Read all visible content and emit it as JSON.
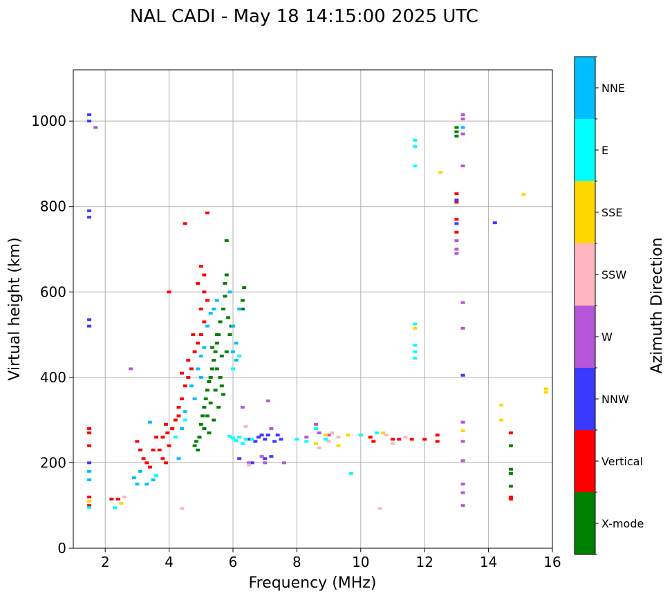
{
  "chart_data": {
    "type": "scatter",
    "title": "NAL CADI - May 18 14:15:00 2025 UTC",
    "xlabel": "Frequency (MHz)",
    "ylabel": "Virtual height (km)",
    "xlim": [
      1,
      16
    ],
    "ylim": [
      0,
      1120
    ],
    "xticks": [
      2,
      4,
      6,
      8,
      10,
      12,
      14,
      16
    ],
    "yticks": [
      0,
      200,
      400,
      600,
      800,
      1000
    ],
    "grid": true,
    "colorbar": {
      "title": "Azimuth Direction",
      "categories": [
        {
          "label": "X-mode",
          "color": "#008000"
        },
        {
          "label": "Vertical",
          "color": "#ff0000"
        },
        {
          "label": "NNW",
          "color": "#3a3aff"
        },
        {
          "label": "W",
          "color": "#b656d8"
        },
        {
          "label": "SSW",
          "color": "#ffb6c1"
        },
        {
          "label": "SSE",
          "color": "#ffd700"
        },
        {
          "label": "E",
          "color": "#00ffff"
        },
        {
          "label": "NNE",
          "color": "#00bfff"
        }
      ]
    },
    "series": [
      {
        "name": "X-mode",
        "points": [
          [
            5.0,
            290
          ],
          [
            5.05,
            310
          ],
          [
            5.1,
            330
          ],
          [
            5.15,
            350
          ],
          [
            5.2,
            370
          ],
          [
            5.25,
            390
          ],
          [
            5.3,
            400
          ],
          [
            5.35,
            420
          ],
          [
            5.4,
            440
          ],
          [
            5.45,
            460
          ],
          [
            5.5,
            480
          ],
          [
            5.55,
            500
          ],
          [
            5.6,
            530
          ],
          [
            5.7,
            560
          ],
          [
            5.75,
            590
          ],
          [
            5.75,
            620
          ],
          [
            5.8,
            640
          ],
          [
            6.3,
            580
          ],
          [
            6.3,
            560
          ],
          [
            6.35,
            610
          ],
          [
            5.5,
            420
          ],
          [
            5.6,
            400
          ],
          [
            5.65,
            380
          ],
          [
            5.7,
            360
          ],
          [
            5.45,
            370
          ],
          [
            5.3,
            340
          ],
          [
            5.2,
            310
          ],
          [
            5.1,
            280
          ],
          [
            4.95,
            260
          ],
          [
            4.8,
            240
          ],
          [
            4.85,
            250
          ],
          [
            5.8,
            720
          ],
          [
            13.0,
            985
          ],
          [
            13.0,
            975
          ],
          [
            13.0,
            965
          ],
          [
            14.7,
            240
          ],
          [
            14.7,
            185
          ],
          [
            14.7,
            175
          ],
          [
            14.7,
            145
          ],
          [
            5.9,
            500
          ],
          [
            5.95,
            520
          ],
          [
            5.4,
            300
          ],
          [
            5.55,
            330
          ],
          [
            5.65,
            450
          ],
          [
            5.8,
            460
          ],
          [
            4.9,
            230
          ],
          [
            5.25,
            270
          ],
          [
            5.5,
            500
          ],
          [
            5.85,
            540
          ],
          [
            5.35,
            470
          ]
        ]
      },
      {
        "name": "Vertical",
        "points": [
          [
            1.5,
            280
          ],
          [
            1.5,
            270
          ],
          [
            1.5,
            240
          ],
          [
            1.5,
            120
          ],
          [
            1.5,
            100
          ],
          [
            2.2,
            115
          ],
          [
            2.4,
            115
          ],
          [
            3.0,
            250
          ],
          [
            3.1,
            230
          ],
          [
            3.2,
            210
          ],
          [
            3.3,
            200
          ],
          [
            3.4,
            190
          ],
          [
            3.5,
            230
          ],
          [
            3.6,
            260
          ],
          [
            3.7,
            230
          ],
          [
            3.8,
            210
          ],
          [
            3.9,
            200
          ],
          [
            4.0,
            240
          ],
          [
            4.1,
            280
          ],
          [
            4.2,
            300
          ],
          [
            4.3,
            330
          ],
          [
            4.4,
            350
          ],
          [
            4.5,
            380
          ],
          [
            4.6,
            400
          ],
          [
            4.7,
            420
          ],
          [
            4.8,
            460
          ],
          [
            4.9,
            480
          ],
          [
            5.0,
            500
          ],
          [
            5.1,
            530
          ],
          [
            5.2,
            580
          ],
          [
            4.0,
            600
          ],
          [
            4.5,
            760
          ],
          [
            5.0,
            660
          ],
          [
            5.1,
            640
          ],
          [
            5.2,
            785
          ],
          [
            4.9,
            620
          ],
          [
            3.8,
            260
          ],
          [
            3.9,
            290
          ],
          [
            4.3,
            310
          ],
          [
            10.3,
            260
          ],
          [
            10.4,
            250
          ],
          [
            11.0,
            255
          ],
          [
            11.2,
            255
          ],
          [
            11.6,
            255
          ],
          [
            12.0,
            255
          ],
          [
            12.4,
            265
          ],
          [
            12.4,
            250
          ],
          [
            13.0,
            830
          ],
          [
            13.0,
            810
          ],
          [
            13.0,
            770
          ],
          [
            13.0,
            740
          ],
          [
            14.7,
            270
          ],
          [
            14.7,
            120
          ],
          [
            14.7,
            115
          ],
          [
            4.6,
            440
          ],
          [
            4.75,
            500
          ],
          [
            5.0,
            560
          ],
          [
            5.1,
            600
          ],
          [
            4.4,
            410
          ],
          [
            3.95,
            270
          ]
        ]
      },
      {
        "name": "NNW",
        "points": [
          [
            1.5,
            1015
          ],
          [
            1.5,
            1000
          ],
          [
            1.5,
            790
          ],
          [
            1.5,
            775
          ],
          [
            1.5,
            535
          ],
          [
            1.5,
            520
          ],
          [
            1.5,
            200
          ],
          [
            6.5,
            255
          ],
          [
            6.8,
            260
          ],
          [
            7.0,
            255
          ],
          [
            7.1,
            265
          ],
          [
            7.3,
            250
          ],
          [
            7.5,
            255
          ],
          [
            6.2,
            210
          ],
          [
            7.0,
            210
          ],
          [
            7.2,
            215
          ],
          [
            13.0,
            815
          ],
          [
            13.0,
            760
          ],
          [
            13.2,
            405
          ],
          [
            14.2,
            762
          ],
          [
            6.7,
            250
          ],
          [
            6.9,
            265
          ],
          [
            7.4,
            265
          ],
          [
            6.6,
            200
          ]
        ]
      },
      {
        "name": "W",
        "points": [
          [
            2.8,
            420
          ],
          [
            6.5,
            200
          ],
          [
            6.9,
            215
          ],
          [
            7.0,
            200
          ],
          [
            7.1,
            345
          ],
          [
            7.6,
            200
          ],
          [
            8.6,
            290
          ],
          [
            8.7,
            270
          ],
          [
            9.0,
            265
          ],
          [
            13.0,
            720
          ],
          [
            13.0,
            700
          ],
          [
            13.0,
            690
          ],
          [
            13.2,
            1015
          ],
          [
            13.2,
            1005
          ],
          [
            13.2,
            970
          ],
          [
            13.2,
            895
          ],
          [
            13.2,
            575
          ],
          [
            13.2,
            515
          ],
          [
            13.2,
            295
          ],
          [
            13.2,
            250
          ],
          [
            13.2,
            205
          ],
          [
            13.2,
            150
          ],
          [
            13.2,
            130
          ],
          [
            13.2,
            100
          ],
          [
            1.7,
            985
          ],
          [
            7.2,
            280
          ],
          [
            6.3,
            330
          ],
          [
            8.3,
            260
          ]
        ]
      },
      {
        "name": "SSW",
        "points": [
          [
            4.4,
            93
          ],
          [
            6.5,
            195
          ],
          [
            8.7,
            235
          ],
          [
            9.0,
            250
          ],
          [
            9.3,
            260
          ],
          [
            10.6,
            93
          ],
          [
            10.8,
            265
          ],
          [
            11.4,
            260
          ],
          [
            2.6,
            120
          ],
          [
            6.4,
            285
          ],
          [
            9.1,
            270
          ],
          [
            11.0,
            245
          ]
        ]
      },
      {
        "name": "SSE",
        "points": [
          [
            1.5,
            110
          ],
          [
            2.5,
            105
          ],
          [
            8.6,
            245
          ],
          [
            8.9,
            265
          ],
          [
            9.3,
            240
          ],
          [
            9.6,
            265
          ],
          [
            10.0,
            265
          ],
          [
            11.7,
            515
          ],
          [
            12.5,
            880
          ],
          [
            13.2,
            275
          ],
          [
            14.4,
            300
          ],
          [
            14.4,
            335
          ],
          [
            15.1,
            828
          ],
          [
            15.8,
            373
          ],
          [
            15.8,
            365
          ],
          [
            10.7,
            270
          ]
        ]
      },
      {
        "name": "E",
        "points": [
          [
            1.5,
            95
          ],
          [
            2.3,
            95
          ],
          [
            5.9,
            262
          ],
          [
            6.0,
            258
          ],
          [
            6.1,
            252
          ],
          [
            6.2,
            260
          ],
          [
            6.4,
            255
          ],
          [
            6.6,
            255
          ],
          [
            8.0,
            255
          ],
          [
            8.3,
            250
          ],
          [
            8.6,
            280
          ],
          [
            8.9,
            255
          ],
          [
            9.7,
            175
          ],
          [
            10.0,
            265
          ],
          [
            10.5,
            270
          ],
          [
            11.7,
            955
          ],
          [
            11.7,
            940
          ],
          [
            11.7,
            895
          ],
          [
            11.7,
            525
          ],
          [
            11.7,
            475
          ],
          [
            11.7,
            460
          ],
          [
            11.7,
            445
          ],
          [
            6.0,
            420
          ],
          [
            6.2,
            450
          ],
          [
            4.5,
            300
          ],
          [
            4.2,
            260
          ],
          [
            3.6,
            170
          ],
          [
            6.3,
            245
          ]
        ]
      },
      {
        "name": "NNE",
        "points": [
          [
            1.5,
            180
          ],
          [
            1.5,
            160
          ],
          [
            2.9,
            165
          ],
          [
            3.0,
            150
          ],
          [
            3.1,
            180
          ],
          [
            3.3,
            150
          ],
          [
            3.5,
            160
          ],
          [
            4.4,
            280
          ],
          [
            4.5,
            320
          ],
          [
            4.7,
            380
          ],
          [
            4.9,
            420
          ],
          [
            5.0,
            450
          ],
          [
            5.1,
            470
          ],
          [
            5.2,
            520
          ],
          [
            5.3,
            550
          ],
          [
            5.5,
            580
          ],
          [
            5.9,
            600
          ],
          [
            6.0,
            520
          ],
          [
            6.1,
            480
          ],
          [
            6.1,
            440
          ],
          [
            6.2,
            560
          ],
          [
            13.2,
            985
          ],
          [
            4.8,
            350
          ],
          [
            5.0,
            400
          ],
          [
            5.4,
            560
          ],
          [
            4.3,
            210
          ],
          [
            3.4,
            295
          ],
          [
            6.0,
            460
          ]
        ]
      }
    ]
  }
}
